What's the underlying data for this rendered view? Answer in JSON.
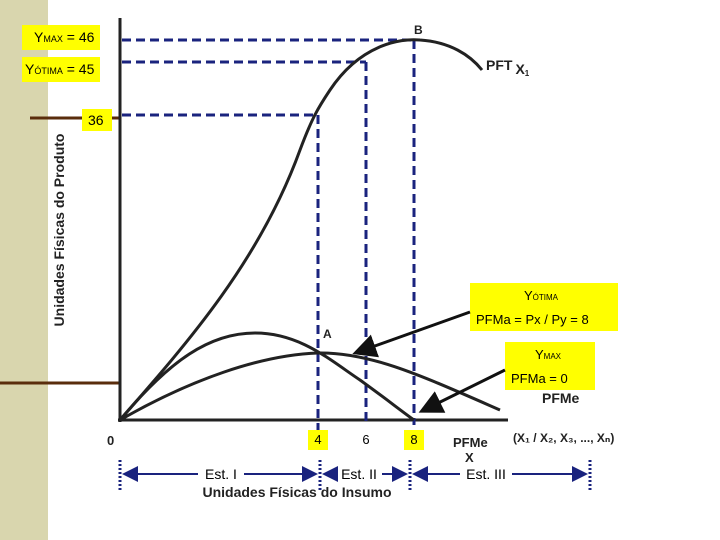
{
  "labels": {
    "y_max": {
      "base": "Y",
      "sub": "MAX",
      "rest": " = 46"
    },
    "y_otima": {
      "base": "Y",
      "sub": "ÓTIMA",
      "rest": " = 45"
    },
    "value_36": "36",
    "point_b": "B",
    "pft": "PFT",
    "pft_x": "X",
    "pft_x_sub": "1",
    "y_axis": "Unidades Físicas do Produto",
    "point_a": "A",
    "pfme": "PFMe",
    "pfma": "PFMe",
    "pfma_x": "X",
    "origin": "0",
    "x_4": "4",
    "x_6": "6",
    "x_8": "8",
    "x_axis_var": "(X₁ / X₂, X₃, ..., Xₙ)",
    "x_axis": "Unidades Físicas do Insumo",
    "stage_1": "Est. I",
    "stage_2": "Est. II",
    "stage_3": "Est. III",
    "callout_otima": {
      "base": "Y",
      "sub": "ÓTIMA",
      "line2": "PFMa = Px / Py = 8"
    },
    "callout_max": {
      "base": "Y",
      "sub": "MAX",
      "line2": "PFMa = 0"
    }
  }
}
